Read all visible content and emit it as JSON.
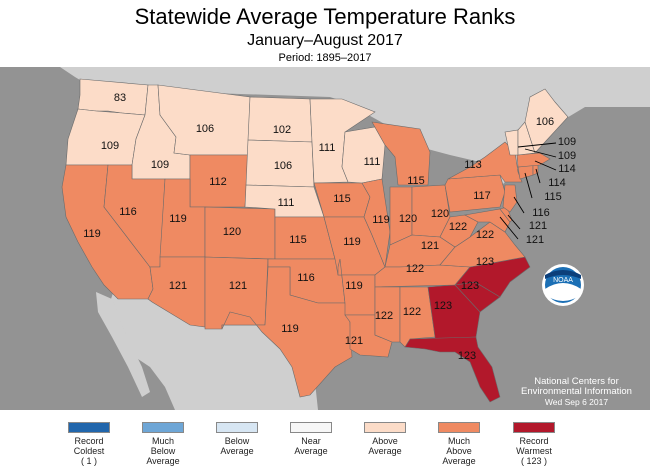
{
  "title": "Statewide Average Temperature Ranks",
  "subtitle": "January–August 2017",
  "period": "Period: 1895–2017",
  "logo_text": "NOAA",
  "credit": {
    "org": "National Centers for Environmental Information",
    "date": "Wed Sep  6 2017"
  },
  "colors": {
    "record_coldest": "#2166ac",
    "much_below": "#6ea6d6",
    "below": "#d7e6f3",
    "near": "#f7f7f7",
    "above": "#fcdcc8",
    "much_above": "#ef8a62",
    "record_warmest": "#b2182b",
    "ocean": "#939393",
    "land_outside": "#cfcfcf"
  },
  "legend": [
    {
      "key": "record_coldest",
      "label": "Record\nColdest\n( 1 )"
    },
    {
      "key": "much_below",
      "label": "Much\nBelow\nAverage"
    },
    {
      "key": "below",
      "label": "Below\nAverage"
    },
    {
      "key": "near",
      "label": "Near\nAverage"
    },
    {
      "key": "above",
      "label": "Above\nAverage"
    },
    {
      "key": "much_above",
      "label": "Much\nAbove\nAverage"
    },
    {
      "key": "record_warmest",
      "label": "Record\nWarmest\n( 123 )"
    }
  ],
  "states": {
    "WA": {
      "rank": "83",
      "cat": "above"
    },
    "OR": {
      "rank": "109",
      "cat": "above"
    },
    "CA": {
      "rank": "119",
      "cat": "much_above"
    },
    "ID": {
      "rank": "109",
      "cat": "above"
    },
    "NV": {
      "rank": "116",
      "cat": "much_above"
    },
    "MT": {
      "rank": "106",
      "cat": "above"
    },
    "WY": {
      "rank": "112",
      "cat": "much_above"
    },
    "UT": {
      "rank": "119",
      "cat": "much_above"
    },
    "CO": {
      "rank": "120",
      "cat": "much_above"
    },
    "AZ": {
      "rank": "121",
      "cat": "much_above"
    },
    "NM": {
      "rank": "121",
      "cat": "much_above"
    },
    "ND": {
      "rank": "102",
      "cat": "above"
    },
    "SD": {
      "rank": "106",
      "cat": "above"
    },
    "NE": {
      "rank": "111",
      "cat": "above"
    },
    "KS": {
      "rank": "115",
      "cat": "much_above"
    },
    "OK": {
      "rank": "116",
      "cat": "much_above"
    },
    "TX": {
      "rank": "119",
      "cat": "much_above"
    },
    "MN": {
      "rank": "111",
      "cat": "above"
    },
    "IA": {
      "rank": "115",
      "cat": "much_above"
    },
    "MO": {
      "rank": "119",
      "cat": "much_above"
    },
    "AR": {
      "rank": "119",
      "cat": "much_above"
    },
    "LA": {
      "rank": "121",
      "cat": "much_above"
    },
    "WI": {
      "rank": "111",
      "cat": "above"
    },
    "IL": {
      "rank": "119",
      "cat": "much_above"
    },
    "MI": {
      "rank": "115",
      "cat": "much_above"
    },
    "IN": {
      "rank": "120",
      "cat": "much_above"
    },
    "OH": {
      "rank": "120",
      "cat": "much_above"
    },
    "KY": {
      "rank": "121",
      "cat": "much_above"
    },
    "TN": {
      "rank": "122",
      "cat": "much_above"
    },
    "MS": {
      "rank": "122",
      "cat": "much_above"
    },
    "AL": {
      "rank": "122",
      "cat": "much_above"
    },
    "GA": {
      "rank": "123",
      "cat": "record_warmest"
    },
    "FL": {
      "rank": "123",
      "cat": "record_warmest"
    },
    "SC": {
      "rank": "123",
      "cat": "record_warmest"
    },
    "NC": {
      "rank": "123",
      "cat": "record_warmest"
    },
    "VA": {
      "rank": "122",
      "cat": "much_above"
    },
    "WV": {
      "rank": "122",
      "cat": "much_above"
    },
    "PA": {
      "rank": "117",
      "cat": "much_above"
    },
    "NY": {
      "rank": "113",
      "cat": "much_above"
    },
    "ME": {
      "rank": "106",
      "cat": "above"
    },
    "VT": {
      "rank": "109",
      "cat": "above"
    },
    "NH": {
      "rank": "109",
      "cat": "above"
    },
    "MA": {
      "rank": "114",
      "cat": "much_above"
    },
    "RI": {
      "rank": "114",
      "cat": "much_above"
    },
    "CT": {
      "rank": "115",
      "cat": "much_above"
    },
    "NJ": {
      "rank": "116",
      "cat": "much_above"
    },
    "DE": {
      "rank": "121",
      "cat": "much_above"
    },
    "MD": {
      "rank": "121",
      "cat": "much_above"
    }
  }
}
